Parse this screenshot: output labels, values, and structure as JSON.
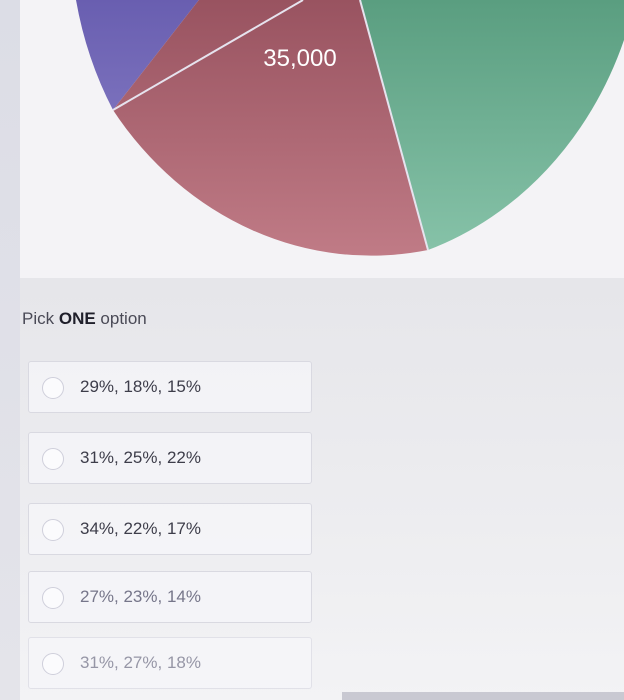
{
  "chart_data": {
    "type": "pie",
    "visible_labels": [
      "35,000"
    ],
    "slices": [
      {
        "color": "#6b5fb0"
      },
      {
        "color": "#9a5563"
      },
      {
        "color": "#6aa98c"
      }
    ]
  },
  "question": {
    "prompt_prefix": "Pick ",
    "prompt_emphasis": "ONE",
    "prompt_suffix": " option"
  },
  "options": [
    {
      "label": "29%, 18%, 15%"
    },
    {
      "label": "31%, 25%, 22%"
    },
    {
      "label": "34%, 22%, 17%"
    },
    {
      "label": "27%, 23%, 14%"
    },
    {
      "label": "31%, 27%, 18%"
    }
  ]
}
